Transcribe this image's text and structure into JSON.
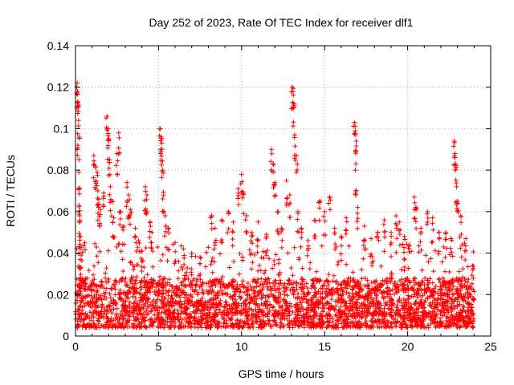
{
  "chart_data": {
    "type": "scatter",
    "title": "Day 252 of 2023, Rate Of TEC Index for receiver dlf1",
    "xlabel": "GPS time / hours",
    "ylabel": "ROTI / TECUs",
    "xlim": [
      0,
      25
    ],
    "ylim": [
      0,
      0.14
    ],
    "xticks": [
      "0",
      "5",
      "10",
      "15",
      "20",
      "25"
    ],
    "yticks": [
      "0",
      "0.02",
      "0.04",
      "0.06",
      "0.08",
      "0.1",
      "0.12",
      "0.14"
    ],
    "grid": true,
    "marker": "plus",
    "color": "#ff0000",
    "series": [
      {
        "points": [
          [
            0.1,
            0.122
          ],
          [
            0.12,
            0.118
          ],
          [
            0.15,
            0.113
          ],
          [
            0.18,
            0.104
          ],
          [
            0.15,
            0.092
          ],
          [
            0.2,
            0.079
          ],
          [
            0.22,
            0.063
          ],
          [
            0.25,
            0.058
          ],
          [
            0.3,
            0.048
          ],
          [
            0.28,
            0.042
          ],
          [
            0.35,
            0.039
          ],
          [
            1.1,
            0.087
          ],
          [
            1.2,
            0.082
          ],
          [
            1.3,
            0.079
          ],
          [
            1.35,
            0.07
          ],
          [
            1.4,
            0.066
          ],
          [
            1.5,
            0.061
          ],
          [
            1.7,
            0.069
          ],
          [
            1.9,
            0.106
          ],
          [
            1.95,
            0.1
          ],
          [
            2.0,
            0.095
          ],
          [
            2.05,
            0.085
          ],
          [
            2.1,
            0.072
          ],
          [
            2.2,
            0.065
          ],
          [
            2.3,
            0.057
          ],
          [
            2.5,
            0.088
          ],
          [
            2.6,
            0.098
          ],
          [
            2.7,
            0.06
          ],
          [
            2.9,
            0.053
          ],
          [
            3.1,
            0.074
          ],
          [
            3.2,
            0.068
          ],
          [
            3.3,
            0.061
          ],
          [
            3.6,
            0.052
          ],
          [
            3.8,
            0.046
          ],
          [
            4.0,
            0.041
          ],
          [
            4.2,
            0.072
          ],
          [
            4.3,
            0.068
          ],
          [
            4.5,
            0.055
          ],
          [
            4.6,
            0.05
          ],
          [
            5.1,
            0.1
          ],
          [
            5.15,
            0.096
          ],
          [
            5.2,
            0.093
          ],
          [
            5.25,
            0.08
          ],
          [
            5.3,
            0.068
          ],
          [
            5.4,
            0.058
          ],
          [
            5.6,
            0.052
          ],
          [
            6.0,
            0.045
          ],
          [
            6.5,
            0.042
          ],
          [
            7.0,
            0.04
          ],
          [
            7.5,
            0.038
          ],
          [
            8.2,
            0.058
          ],
          [
            8.4,
            0.052
          ],
          [
            8.8,
            0.056
          ],
          [
            9.2,
            0.06
          ],
          [
            9.5,
            0.055
          ],
          [
            9.8,
            0.071
          ],
          [
            10.0,
            0.078
          ],
          [
            10.1,
            0.069
          ],
          [
            10.3,
            0.058
          ],
          [
            10.6,
            0.05
          ],
          [
            11.0,
            0.055
          ],
          [
            11.5,
            0.049
          ],
          [
            11.8,
            0.09
          ],
          [
            11.9,
            0.083
          ],
          [
            12.0,
            0.074
          ],
          [
            12.2,
            0.06
          ],
          [
            12.4,
            0.052
          ],
          [
            12.7,
            0.075
          ],
          [
            12.9,
            0.068
          ],
          [
            13.05,
            0.12
          ],
          [
            13.1,
            0.118
          ],
          [
            13.15,
            0.112
          ],
          [
            13.2,
            0.097
          ],
          [
            13.3,
            0.087
          ],
          [
            13.4,
            0.06
          ],
          [
            13.6,
            0.052
          ],
          [
            14.0,
            0.046
          ],
          [
            14.4,
            0.056
          ],
          [
            14.7,
            0.065
          ],
          [
            15.0,
            0.06
          ],
          [
            15.3,
            0.067
          ],
          [
            15.6,
            0.052
          ],
          [
            16.0,
            0.048
          ],
          [
            16.3,
            0.057
          ],
          [
            16.8,
            0.103
          ],
          [
            16.85,
            0.099
          ],
          [
            16.9,
            0.094
          ],
          [
            16.85,
            0.08
          ],
          [
            17.0,
            0.062
          ],
          [
            17.4,
            0.053
          ],
          [
            17.8,
            0.047
          ],
          [
            18.2,
            0.05
          ],
          [
            18.6,
            0.056
          ],
          [
            19.0,
            0.05
          ],
          [
            19.3,
            0.058
          ],
          [
            19.5,
            0.055
          ],
          [
            19.8,
            0.048
          ],
          [
            20.1,
            0.044
          ],
          [
            20.4,
            0.067
          ],
          [
            20.5,
            0.062
          ],
          [
            20.8,
            0.052
          ],
          [
            21.2,
            0.06
          ],
          [
            21.5,
            0.057
          ],
          [
            21.9,
            0.05
          ],
          [
            22.3,
            0.05
          ],
          [
            22.6,
            0.047
          ],
          [
            22.8,
            0.094
          ],
          [
            22.85,
            0.088
          ],
          [
            22.9,
            0.083
          ],
          [
            22.95,
            0.072
          ],
          [
            23.0,
            0.065
          ],
          [
            23.2,
            0.058
          ],
          [
            23.5,
            0.047
          ],
          [
            23.9,
            0.034
          ]
        ],
        "baseline": {
          "x_range": [
            0,
            24
          ],
          "typical_low": 0.004,
          "typical_high": 0.028,
          "upper_tail": 0.045
        }
      }
    ]
  }
}
